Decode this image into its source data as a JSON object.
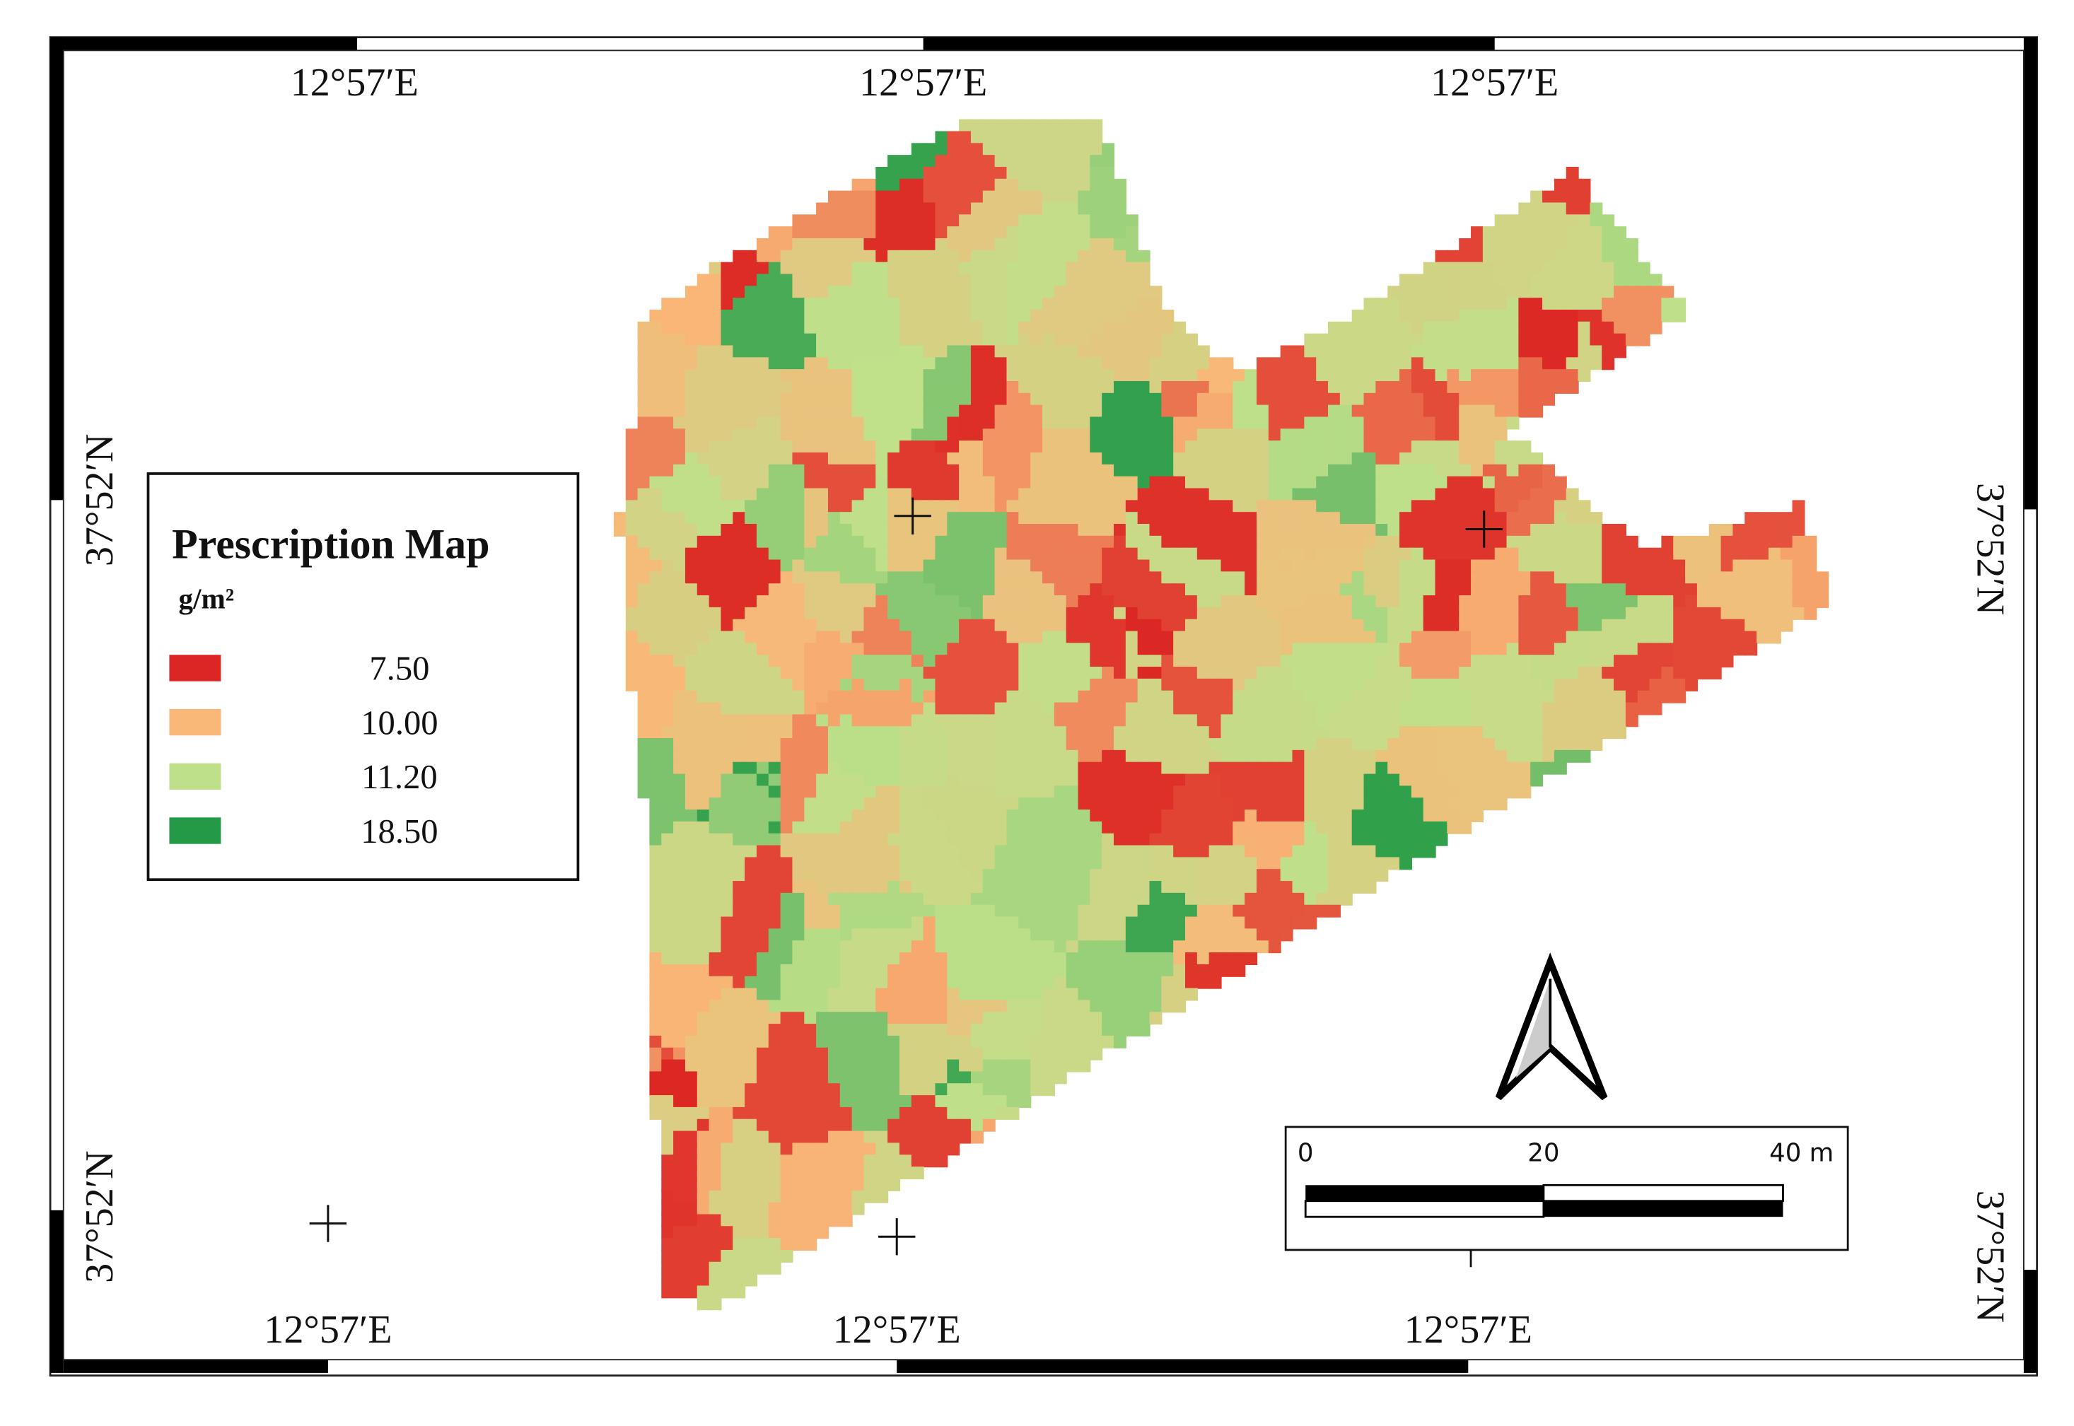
{
  "map": {
    "top_labels": [
      "12°57′E",
      "12°57′E",
      "12°57′E"
    ],
    "bottom_labels": [
      "12°57′E",
      "12°57′E",
      "12°57′E"
    ],
    "left_labels": [
      "37°52′N",
      "37°52′N"
    ],
    "right_labels": [
      "37°52′N",
      "37°52′N"
    ]
  },
  "legend": {
    "title": "Prescription Map",
    "unit": "g/m²",
    "items": [
      {
        "label": "7.50",
        "color": "#dc2623"
      },
      {
        "label": "10.00",
        "color": "#f9b878"
      },
      {
        "label": "11.20",
        "color": "#bfe08a"
      },
      {
        "label": "18.50",
        "color": "#249a46"
      }
    ]
  },
  "scale_bar": {
    "labels": [
      "0",
      "20",
      "40 m"
    ]
  }
}
